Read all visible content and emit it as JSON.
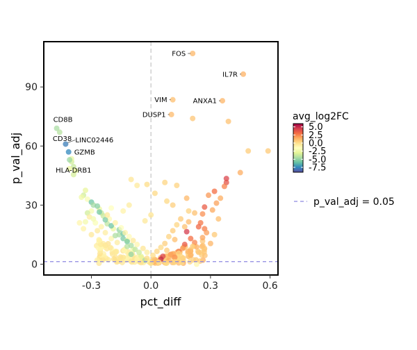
{
  "chart_data": {
    "type": "scatter",
    "title": "",
    "xlabel": "pct_diff",
    "ylabel": "p_val_adj",
    "xlim": [
      -0.54,
      0.64
    ],
    "ylim": [
      -5.5,
      113
    ],
    "x_ticks": [
      -0.3,
      0.0,
      0.3,
      0.6
    ],
    "x_tick_labels": [
      "-0.3",
      "0.0",
      "0.3",
      "0.6"
    ],
    "y_ticks": [
      0,
      30,
      60,
      90
    ],
    "y_tick_labels": [
      "0",
      "30",
      "60",
      "90"
    ],
    "grid": false,
    "color_variable": "avg_log2FC",
    "colorbar": {
      "title": "avg_log2FC",
      "range": [
        -9,
        6
      ],
      "tick_values": [
        5.0,
        2.5,
        0.0,
        -2.5,
        -5.0,
        -7.5
      ],
      "tick_labels": [
        "5.0",
        "2.5",
        "0.0",
        "-2.5",
        "-5.0",
        "-7.5"
      ],
      "colors": [
        "#5e4fa2",
        "#3288bd",
        "#66c2a5",
        "#abdda4",
        "#e6f598",
        "#ffffbf",
        "#fee08b",
        "#fdae61",
        "#f46d43",
        "#d53e4f",
        "#9e0142"
      ]
    },
    "reference_lines": [
      {
        "axis": "y",
        "value": 1.3,
        "label": "p_val_adj = 0.05",
        "color": "#8c86e0",
        "style": "dashed"
      },
      {
        "axis": "x",
        "value": 0.0,
        "color": "#cccccc",
        "style": "dashed"
      }
    ],
    "legend_entries": [
      "p_val_adj = 0.05"
    ],
    "labeled_points": [
      {
        "label": "FOS",
        "x": 0.21,
        "y": 107,
        "c": 1.2
      },
      {
        "label": "IL7R",
        "x": 0.465,
        "y": 96.5,
        "c": 1.4
      },
      {
        "label": "VIM",
        "x": 0.11,
        "y": 83.5,
        "c": 1.0
      },
      {
        "label": "ANXA1",
        "x": 0.36,
        "y": 83,
        "c": 1.3
      },
      {
        "label": "DUSP1",
        "x": 0.103,
        "y": 76,
        "c": 1.1
      },
      {
        "label": "CD8B",
        "x": -0.475,
        "y": 69,
        "c": -4.5
      },
      {
        "label": "CD38",
        "x": -0.46,
        "y": 67,
        "c": -4.2
      },
      {
        "label": "LINC02446",
        "x": -0.43,
        "y": 61,
        "c": -7.8
      },
      {
        "label": "GZMB",
        "x": -0.415,
        "y": 57,
        "c": -7.5
      },
      {
        "label": "HLA-DRB1",
        "x": -0.41,
        "y": 53,
        "c": -4.8
      }
    ],
    "points": [
      {
        "x": 0.21,
        "y": 74,
        "c": 0.8
      },
      {
        "x": 0.39,
        "y": 72.5,
        "c": 0.9
      },
      {
        "x": 0.59,
        "y": 57.5,
        "c": 0.7
      },
      {
        "x": 0.49,
        "y": 57.5,
        "c": 0.6
      },
      {
        "x": 0.45,
        "y": 46.5,
        "c": 1.5
      },
      {
        "x": 0.38,
        "y": 43.5,
        "c": 4.2
      },
      {
        "x": 0.38,
        "y": 41.5,
        "c": 3.8
      },
      {
        "x": 0.37,
        "y": 39.5,
        "c": 2.5
      },
      {
        "x": 0.32,
        "y": 37,
        "c": 3.0
      },
      {
        "x": 0.29,
        "y": 35,
        "c": 2.0
      },
      {
        "x": 0.18,
        "y": 33.5,
        "c": 1.2
      },
      {
        "x": 0.35,
        "y": 33.5,
        "c": 1.5
      },
      {
        "x": 0.33,
        "y": 31,
        "c": 1.8
      },
      {
        "x": 0.27,
        "y": 29,
        "c": 3.5
      },
      {
        "x": 0.31,
        "y": 27.5,
        "c": 1.6
      },
      {
        "x": 0.26,
        "y": 25.5,
        "c": 2.2
      },
      {
        "x": 0.34,
        "y": 23,
        "c": 1.0
      },
      {
        "x": 0.22,
        "y": 26,
        "c": 0.9
      },
      {
        "x": 0.19,
        "y": 27,
        "c": 0.4
      },
      {
        "x": 0.25,
        "y": 21,
        "c": 2.8
      },
      {
        "x": 0.24,
        "y": 19,
        "c": 3.2
      },
      {
        "x": 0.27,
        "y": 18,
        "c": 2.6
      },
      {
        "x": 0.28,
        "y": 16,
        "c": 1.9
      },
      {
        "x": 0.18,
        "y": 16.5,
        "c": 4.5
      },
      {
        "x": 0.2,
        "y": 13,
        "c": 3.0
      },
      {
        "x": 0.22,
        "y": 11,
        "c": 2.4
      },
      {
        "x": 0.17,
        "y": 10,
        "c": 3.6
      },
      {
        "x": 0.12,
        "y": 12.5,
        "c": 1.0
      },
      {
        "x": 0.16,
        "y": 8,
        "c": 2.0
      },
      {
        "x": 0.14,
        "y": 6.5,
        "c": 2.7
      },
      {
        "x": 0.1,
        "y": 5,
        "c": 1.8
      },
      {
        "x": 0.06,
        "y": 4,
        "c": 4.2
      },
      {
        "x": 0.08,
        "y": 7,
        "c": 0.6
      },
      {
        "x": 0.05,
        "y": 2.5,
        "c": 5.0
      },
      {
        "x": 0.03,
        "y": 1.5,
        "c": 1.2
      },
      {
        "x": 0.09,
        "y": 2,
        "c": 1.5
      },
      {
        "x": 0.12,
        "y": 3.5,
        "c": 2.2
      },
      {
        "x": 0.2,
        "y": 4.5,
        "c": 1.4
      },
      {
        "x": 0.24,
        "y": 6,
        "c": 0.8
      },
      {
        "x": 0.23,
        "y": 0,
        "c": -1.0
      },
      {
        "x": 0.07,
        "y": 41.5,
        "c": 0.3
      },
      {
        "x": 0.11,
        "y": 30,
        "c": 0.5
      },
      {
        "x": 0.02,
        "y": 36,
        "c": 0.2
      },
      {
        "x": -0.02,
        "y": 40.5,
        "c": 0.1
      },
      {
        "x": -0.03,
        "y": 22,
        "c": -0.4
      },
      {
        "x": 0.0,
        "y": 25,
        "c": -0.2
      },
      {
        "x": 0.13,
        "y": 40,
        "c": 0.4
      },
      {
        "x": 0.08,
        "y": 32,
        "c": 0.2
      },
      {
        "x": -0.1,
        "y": 43,
        "c": -0.3
      },
      {
        "x": -0.07,
        "y": 40,
        "c": -0.5
      },
      {
        "x": -0.11,
        "y": 30,
        "c": -0.6
      },
      {
        "x": -0.14,
        "y": 27,
        "c": -0.9
      },
      {
        "x": -0.2,
        "y": 28.5,
        "c": -1.5
      },
      {
        "x": -0.26,
        "y": 28,
        "c": -2.5
      },
      {
        "x": -0.3,
        "y": 27,
        "c": -2.0
      },
      {
        "x": -0.32,
        "y": 26,
        "c": -3.5
      },
      {
        "x": -0.25,
        "y": 26,
        "c": -3.8
      },
      {
        "x": -0.21,
        "y": 23,
        "c": -1.2
      },
      {
        "x": -0.33,
        "y": 21.5,
        "c": -2.2
      },
      {
        "x": -0.28,
        "y": 21,
        "c": -1.8
      },
      {
        "x": -0.22,
        "y": 20.5,
        "c": -4.0
      },
      {
        "x": -0.25,
        "y": 19,
        "c": -0.8
      },
      {
        "x": -0.19,
        "y": 18,
        "c": -2.6
      },
      {
        "x": -0.16,
        "y": 15,
        "c": -4.5
      },
      {
        "x": -0.14,
        "y": 13,
        "c": -5.5
      },
      {
        "x": -0.12,
        "y": 12,
        "c": -3.2
      },
      {
        "x": -0.12,
        "y": 9,
        "c": -4.2
      },
      {
        "x": -0.09,
        "y": 7.5,
        "c": -2.4
      },
      {
        "x": -0.1,
        "y": 5,
        "c": -5.0
      },
      {
        "x": -0.05,
        "y": 4,
        "c": -3.0
      },
      {
        "x": -0.03,
        "y": 2,
        "c": -4.6
      },
      {
        "x": -0.17,
        "y": 11,
        "c": -0.6
      },
      {
        "x": -0.2,
        "y": 13,
        "c": -1.0
      },
      {
        "x": -0.23,
        "y": 16,
        "c": -0.7
      },
      {
        "x": -0.27,
        "y": 17,
        "c": -0.5
      },
      {
        "x": -0.07,
        "y": 2.5,
        "c": -0.9
      },
      {
        "x": -0.33,
        "y": 37.5,
        "c": -2.8
      },
      {
        "x": -0.34,
        "y": 35,
        "c": -3.5
      },
      {
        "x": -0.35,
        "y": 34,
        "c": -2.4
      },
      {
        "x": -0.32,
        "y": 33,
        "c": -1.9
      },
      {
        "x": -0.3,
        "y": 31.5,
        "c": -5.8
      },
      {
        "x": -0.29,
        "y": 30,
        "c": -4.6
      },
      {
        "x": -0.27,
        "y": 29.5,
        "c": -5.2
      },
      {
        "x": -0.26,
        "y": 26.5,
        "c": -5.6
      },
      {
        "x": -0.24,
        "y": 24.5,
        "c": -3.8
      },
      {
        "x": -0.23,
        "y": 22.5,
        "c": -5.5
      },
      {
        "x": -0.2,
        "y": 19.5,
        "c": -5.8
      },
      {
        "x": -0.16,
        "y": 17.5,
        "c": -5.0
      },
      {
        "x": -0.14,
        "y": 15.5,
        "c": -5.6
      },
      {
        "x": -0.18,
        "y": 14.5,
        "c": -4.4
      },
      {
        "x": -0.12,
        "y": 11.5,
        "c": -5.6
      },
      {
        "x": -0.1,
        "y": 9.5,
        "c": -4.5
      },
      {
        "x": -0.08,
        "y": 7.5,
        "c": -4.0
      },
      {
        "x": -0.06,
        "y": 6,
        "c": -3.6
      },
      {
        "x": -0.4,
        "y": 52,
        "c": -3.5
      },
      {
        "x": -0.39,
        "y": 49.5,
        "c": -3.8
      },
      {
        "x": -0.38,
        "y": 47.5,
        "c": -3.0
      },
      {
        "x": -0.41,
        "y": 48.5,
        "c": -2.6
      },
      {
        "x": -0.39,
        "y": 45.5,
        "c": -3.4
      },
      {
        "x": -0.4,
        "y": 53.5,
        "c": -2.5
      },
      {
        "x": -0.36,
        "y": 21,
        "c": -1.0
      },
      {
        "x": -0.31,
        "y": 24,
        "c": -0.6
      },
      {
        "x": -0.29,
        "y": 23,
        "c": -2.2
      },
      {
        "x": -0.22,
        "y": 25,
        "c": -0.4
      },
      {
        "x": -0.18,
        "y": 21,
        "c": -0.8
      },
      {
        "x": -0.15,
        "y": 18.5,
        "c": -1.6
      },
      {
        "x": -0.13,
        "y": 16,
        "c": -0.9
      },
      {
        "x": -0.11,
        "y": 14,
        "c": -1.3
      },
      {
        "x": -0.09,
        "y": 12,
        "c": -0.4
      },
      {
        "x": -0.07,
        "y": 10,
        "c": -1.0
      },
      {
        "x": -0.04,
        "y": 8,
        "c": -0.3
      },
      {
        "x": -0.02,
        "y": 6,
        "c": -0.6
      },
      {
        "x": 0.01,
        "y": 4.5,
        "c": 0.1
      },
      {
        "x": 0.03,
        "y": 6.5,
        "c": 0.3
      },
      {
        "x": 0.05,
        "y": 8.5,
        "c": 0.2
      },
      {
        "x": 0.07,
        "y": 10.5,
        "c": 0.5
      },
      {
        "x": 0.09,
        "y": 14,
        "c": 0.4
      },
      {
        "x": 0.11,
        "y": 17,
        "c": 0.6
      },
      {
        "x": 0.13,
        "y": 20,
        "c": 0.3
      },
      {
        "x": 0.15,
        "y": 23,
        "c": 0.7
      },
      {
        "x": 0.17,
        "y": 19,
        "c": 0.9
      },
      {
        "x": 0.19,
        "y": 21.5,
        "c": 1.1
      },
      {
        "x": 0.21,
        "y": 9,
        "c": 0.6
      },
      {
        "x": 0.16,
        "y": 3,
        "c": 0.4
      },
      {
        "x": 0.27,
        "y": 8,
        "c": 0.8
      },
      {
        "x": 0.3,
        "y": 10.5,
        "c": 1.3
      },
      {
        "x": 0.26,
        "y": 13.5,
        "c": 1.7
      },
      {
        "x": 0.32,
        "y": 15,
        "c": 0.7
      },
      {
        "x": -0.14,
        "y": 3.5,
        "c": -0.2
      },
      {
        "x": -0.18,
        "y": 6,
        "c": -0.5
      },
      {
        "x": -0.23,
        "y": 9.5,
        "c": -0.3
      },
      {
        "x": -0.26,
        "y": 12,
        "c": -0.8
      },
      {
        "x": -0.3,
        "y": 15,
        "c": -0.4
      },
      {
        "x": -0.34,
        "y": 18,
        "c": -0.9
      },
      {
        "x": 0.04,
        "y": 1,
        "c": -0.2
      },
      {
        "x": 0.0,
        "y": 0.5,
        "c": 0.0
      },
      {
        "x": -0.05,
        "y": 0.8,
        "c": -0.1
      },
      {
        "x": 0.08,
        "y": 0.6,
        "c": 0.2
      },
      {
        "x": -0.1,
        "y": 1.5,
        "c": -0.3
      },
      {
        "x": 0.12,
        "y": 1.2,
        "c": 0.3
      },
      {
        "x": -0.02,
        "y": 3,
        "c": 0.1
      },
      {
        "x": 0.14,
        "y": 5.5,
        "c": 0.2
      }
    ]
  }
}
